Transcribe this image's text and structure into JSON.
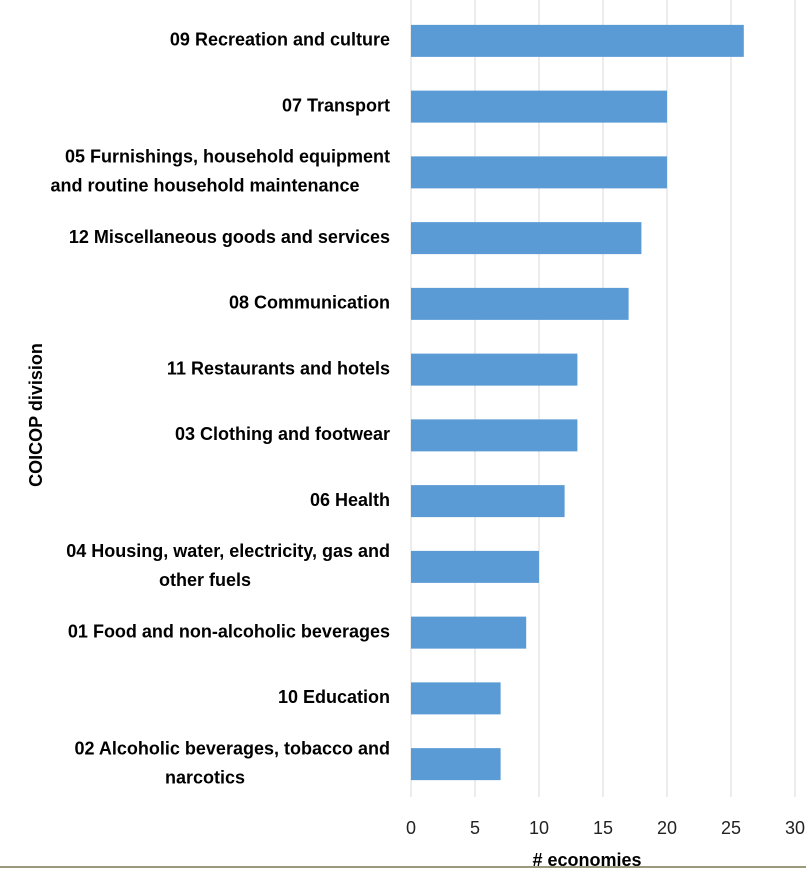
{
  "chart_data": {
    "type": "barh",
    "categories": [
      [
        "09 Recreation and culture"
      ],
      [
        "07 Transport"
      ],
      [
        "05 Furnishings, household equipment",
        "and routine household maintenance"
      ],
      [
        "12 Miscellaneous goods and services"
      ],
      [
        "08 Communication"
      ],
      [
        "11 Restaurants and hotels"
      ],
      [
        "03 Clothing and footwear"
      ],
      [
        "06 Health"
      ],
      [
        "04 Housing, water, electricity, gas and",
        "other fuels"
      ],
      [
        "01 Food and non-alcoholic beverages"
      ],
      [
        "10 Education"
      ],
      [
        "02 Alcoholic beverages, tobacco and",
        "narcotics"
      ]
    ],
    "values": [
      26,
      20,
      20,
      18,
      17,
      13,
      13,
      12,
      10,
      9,
      7,
      7
    ],
    "color": "#5b9bd5",
    "xlim": [
      0,
      30
    ],
    "xticks": [
      0,
      5,
      10,
      15,
      20,
      25,
      30
    ],
    "grid": true,
    "xlabel": "# economies",
    "ylabel": "COICOP division"
  }
}
